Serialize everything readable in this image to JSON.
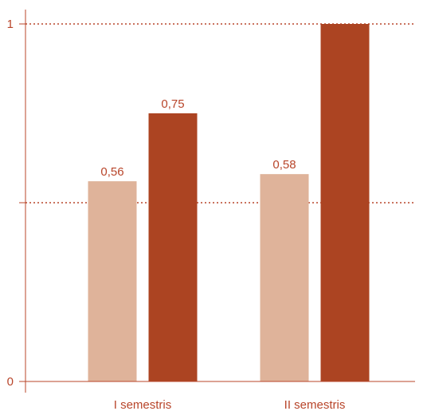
{
  "chart_data": {
    "type": "bar",
    "title": "",
    "xlabel": "",
    "ylabel": "",
    "categories": [
      "I semestris",
      "II semestris"
    ],
    "series": [
      {
        "values": [
          0.56,
          0.58
        ],
        "color": "#dfb39a",
        "labels": [
          "0,56",
          "0,58"
        ]
      },
      {
        "values": [
          0.75,
          1.0
        ],
        "color": "#ac4422",
        "labels": [
          "0,75",
          ""
        ]
      }
    ],
    "ylim": [
      0,
      1
    ],
    "yticks": [
      {
        "value": 0,
        "label": "0"
      },
      {
        "value": 0.5,
        "label": ""
      },
      {
        "value": 1,
        "label": "1"
      }
    ],
    "grid": "dotted horizontal at 0.5 and 1",
    "legend": "none",
    "axis_color": "#b8452a"
  }
}
